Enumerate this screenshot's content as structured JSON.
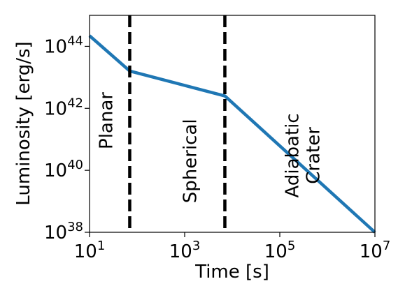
{
  "chart_data": {
    "type": "line",
    "xlabel": "Time [s]",
    "ylabel": "Luminosity [erg/s]",
    "xscale": "log",
    "yscale": "log",
    "xlim": [
      10,
      10000000
    ],
    "ylim": [
      1e+38,
      1e+45
    ],
    "grid": false,
    "x_ticks": [
      {
        "value": 10,
        "base": "10",
        "exp": "1"
      },
      {
        "value": 1000,
        "base": "10",
        "exp": "3"
      },
      {
        "value": 100000,
        "base": "10",
        "exp": "5"
      },
      {
        "value": 10000000,
        "base": "10",
        "exp": "7"
      }
    ],
    "y_ticks": [
      {
        "value": 1e+38,
        "base": "10",
        "exp": "38"
      },
      {
        "value": 1e+40,
        "base": "10",
        "exp": "40"
      },
      {
        "value": 1e+42,
        "base": "10",
        "exp": "42"
      },
      {
        "value": 1e+44,
        "base": "10",
        "exp": "44"
      }
    ],
    "series": [
      {
        "color": "#1f77b4",
        "points": [
          {
            "x": 10,
            "y": 2.2e+44
          },
          {
            "x": 70,
            "y": 1.6e+43
          },
          {
            "x": 7000,
            "y": 2.5e+42
          },
          {
            "x": 10000000,
            "y": 1e+38
          }
        ]
      }
    ],
    "vlines": [
      {
        "x": 70,
        "color": "#000000",
        "style": "dashed"
      },
      {
        "x": 7000,
        "color": "#000000",
        "style": "dashed"
      }
    ],
    "annotations": [
      {
        "lines": [
          "Planar"
        ],
        "x": 22,
        "y": 4e+41,
        "rotation": -90
      },
      {
        "lines": [
          "Spherical"
        ],
        "x": 1300,
        "y": 2e+40,
        "rotation": -90
      },
      {
        "lines": [
          "Adiabatic",
          "Crater"
        ],
        "x": 300000,
        "y": 3e+40,
        "rotation": -90
      }
    ]
  }
}
